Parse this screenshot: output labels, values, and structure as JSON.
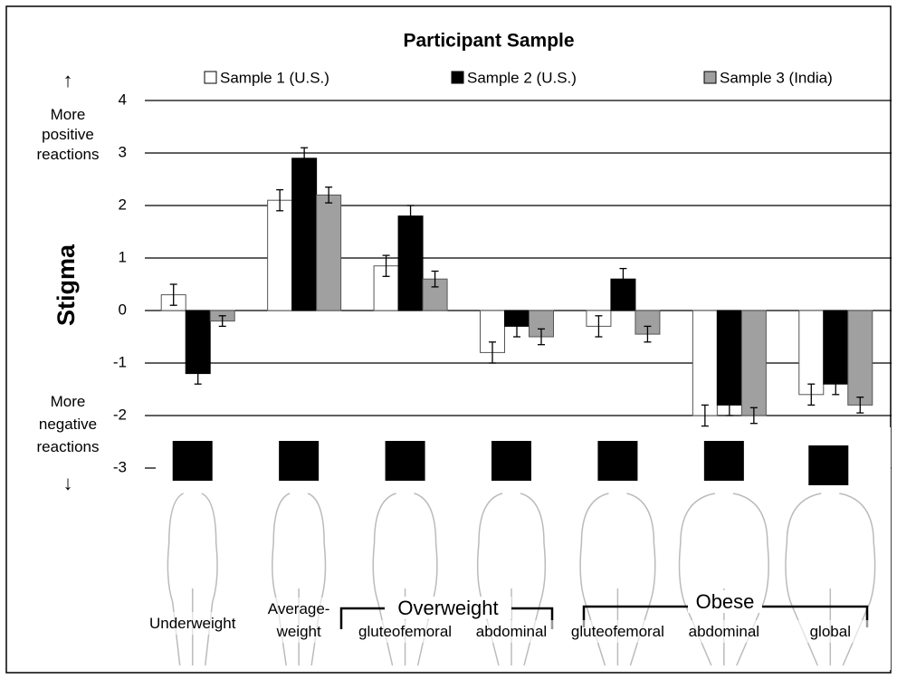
{
  "chart_data": {
    "type": "bar",
    "title": "Participant Sample",
    "ylabel": "Stigma",
    "y_annotations": {
      "up_arrow": "↑",
      "top": "More positive reactions",
      "bottom": "More negative reactions",
      "down_arrow": "↓"
    },
    "categories": [
      "Underweight",
      "Average-weight",
      "gluteofemoral",
      "abdominal",
      "gluteofemoral",
      "abdominal",
      "global"
    ],
    "category_groups": [
      "Overweight",
      "Obese"
    ],
    "series": [
      {
        "name": "Sample 1 (U.S.)",
        "color": "#ffffff",
        "values": [
          0.3,
          2.1,
          0.85,
          -0.8,
          -0.3,
          -2.0,
          -1.6
        ],
        "errors": [
          0.2,
          0.2,
          0.2,
          0.2,
          0.2,
          0.2,
          0.2
        ]
      },
      {
        "name": "Sample 2 (U.S.)",
        "color": "#000000",
        "values": [
          -1.2,
          2.9,
          1.8,
          -0.3,
          0.6,
          -1.8,
          -1.4
        ],
        "errors": [
          0.2,
          0.2,
          0.2,
          0.2,
          0.2,
          0.2,
          0.2
        ]
      },
      {
        "name": "Sample 3 (India)",
        "color": "#a0a0a0",
        "values": [
          -0.2,
          2.2,
          0.6,
          -0.5,
          -0.45,
          -2.0,
          -1.8
        ],
        "errors": [
          0.1,
          0.15,
          0.15,
          0.15,
          0.15,
          0.15,
          0.15
        ]
      }
    ],
    "ylim": [
      -3,
      4
    ],
    "yticks": [
      -3,
      -2,
      -1,
      0,
      1,
      2,
      3,
      4
    ],
    "grid": true
  }
}
